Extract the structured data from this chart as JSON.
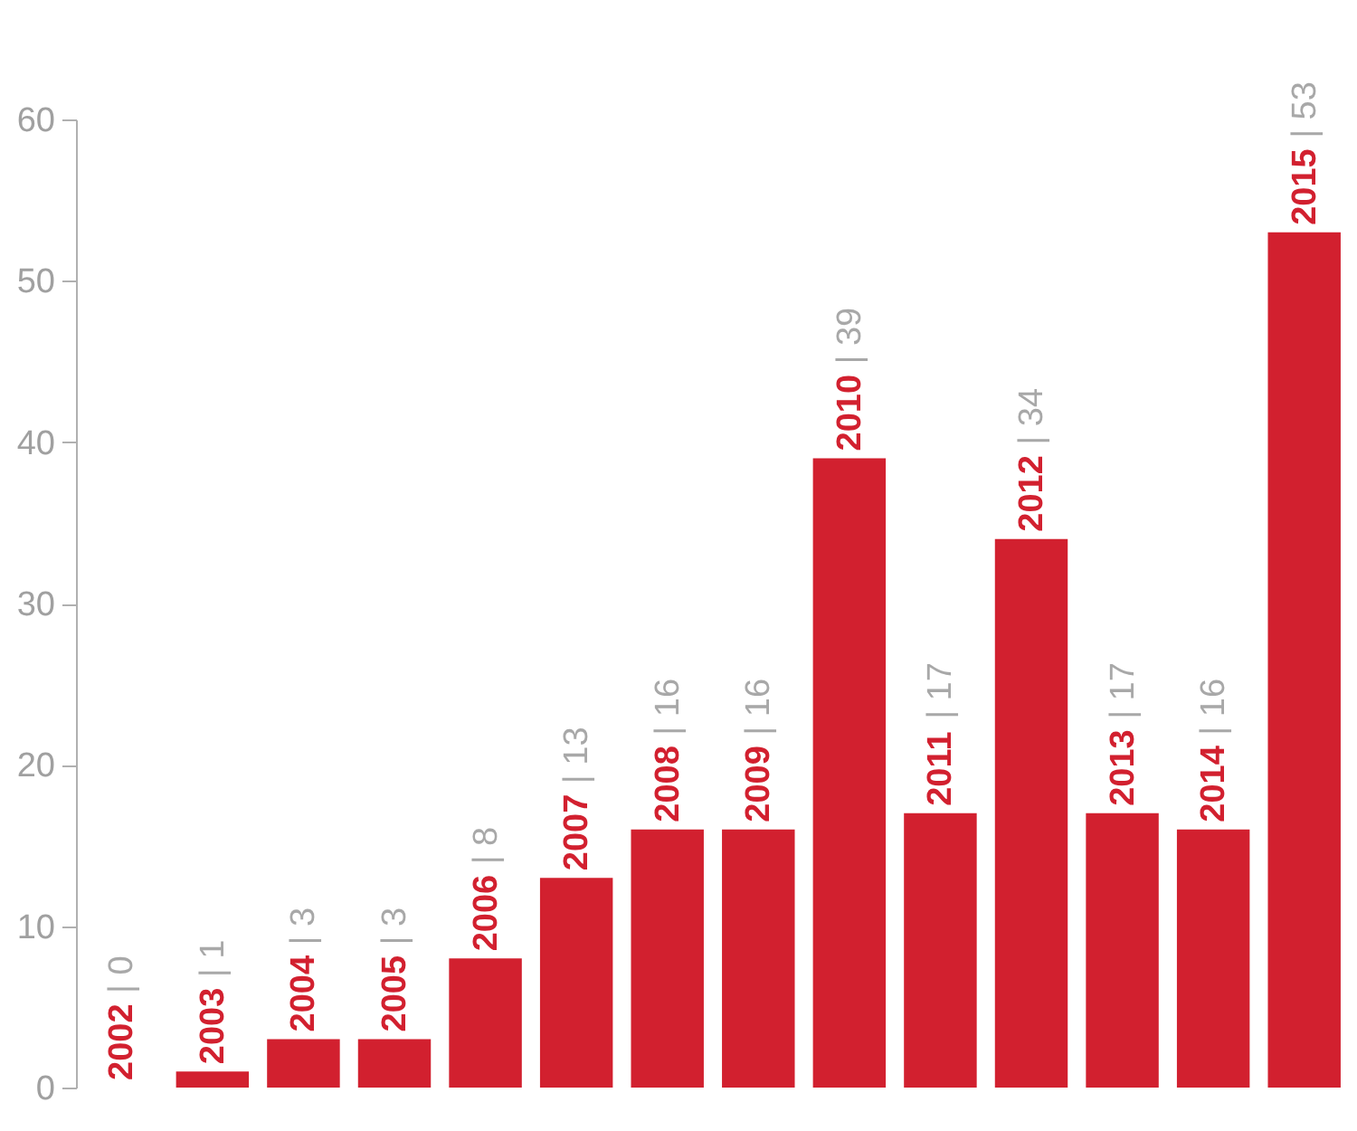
{
  "chart_data": {
    "type": "bar",
    "categories": [
      "2002",
      "2003",
      "2004",
      "2005",
      "2006",
      "2007",
      "2008",
      "2009",
      "2010",
      "2011",
      "2012",
      "2013",
      "2014",
      "2015"
    ],
    "values": [
      0,
      1,
      3,
      3,
      8,
      13,
      16,
      16,
      39,
      17,
      34,
      17,
      16,
      53
    ],
    "value_labels": [
      "| 0",
      "| 1",
      "| 3",
      "| 3",
      "| 8",
      "| 13",
      "| 16",
      "| 16",
      "| 39",
      "| 17",
      "| 34",
      "| 17",
      "| 16",
      "| 53"
    ],
    "color": "#d2202f",
    "ylim": [
      0,
      60
    ],
    "yticks": [
      0,
      10,
      20,
      30,
      40,
      50,
      60
    ],
    "grid": false,
    "tick_labels": "y"
  }
}
